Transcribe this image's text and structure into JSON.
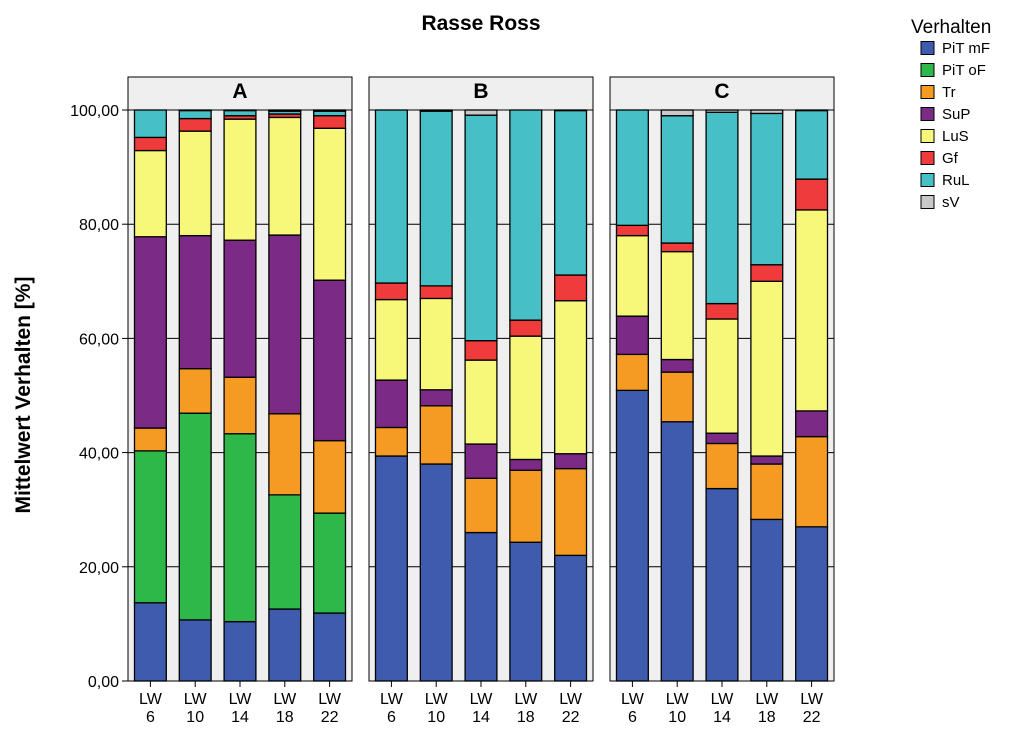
{
  "chart_data": {
    "type": "bar",
    "stacked": true,
    "title": "Rasse Ross",
    "ylabel": "Mittelwert Verhalten [%]",
    "xlabel": "",
    "ylim": [
      0,
      100
    ],
    "yticks": [
      "0,00",
      "20,00",
      "40,00",
      "60,00",
      "80,00",
      "100,00"
    ],
    "ytick_values": [
      0,
      20,
      40,
      60,
      80,
      100
    ],
    "grid": true,
    "legend": {
      "title": "Verhalten",
      "position": "top-right",
      "items": [
        {
          "name": "PiT mF",
          "color": "#3f5bad"
        },
        {
          "name": "PiT oF",
          "color": "#2fb84a"
        },
        {
          "name": "Tr",
          "color": "#f59a23"
        },
        {
          "name": "SuP",
          "color": "#7b2a86"
        },
        {
          "name": "LuS",
          "color": "#f7f77a"
        },
        {
          "name": "Gf",
          "color": "#ef3b3b"
        },
        {
          "name": "RuL",
          "color": "#46c0c6"
        },
        {
          "name": "sV",
          "color": "#c8c8c8"
        }
      ]
    },
    "categories": [
      [
        "LW",
        "6"
      ],
      [
        "LW",
        "10"
      ],
      [
        "LW",
        "14"
      ],
      [
        "LW",
        "18"
      ],
      [
        "LW",
        "22"
      ]
    ],
    "panels": [
      {
        "label": "A",
        "series": [
          {
            "name": "PiT mF",
            "values": [
              13.7,
              10.7,
              10.4,
              12.6,
              11.9
            ]
          },
          {
            "name": "PiT oF",
            "values": [
              26.6,
              36.2,
              32.9,
              20.0,
              17.5
            ]
          },
          {
            "name": "Tr",
            "values": [
              4.0,
              7.8,
              9.9,
              14.2,
              12.7
            ]
          },
          {
            "name": "SuP",
            "values": [
              33.5,
              23.3,
              24.0,
              31.3,
              28.1
            ]
          },
          {
            "name": "LuS",
            "values": [
              15.1,
              18.3,
              21.2,
              20.6,
              26.6
            ]
          },
          {
            "name": "Gf",
            "values": [
              2.3,
              2.2,
              0.6,
              0.6,
              2.2
            ]
          },
          {
            "name": "RuL",
            "values": [
              4.8,
              1.4,
              0.9,
              0.5,
              0.8
            ]
          },
          {
            "name": "sV",
            "values": [
              0.0,
              0.1,
              0.1,
              0.2,
              0.2
            ]
          }
        ]
      },
      {
        "label": "B",
        "series": [
          {
            "name": "PiT mF",
            "values": [
              39.4,
              38.0,
              26.0,
              24.3,
              22.0
            ]
          },
          {
            "name": "PiT oF",
            "values": [
              0,
              0,
              0,
              0,
              0
            ]
          },
          {
            "name": "Tr",
            "values": [
              5.0,
              10.2,
              9.5,
              12.6,
              15.2
            ]
          },
          {
            "name": "SuP",
            "values": [
              8.3,
              2.8,
              6.0,
              1.9,
              2.6
            ]
          },
          {
            "name": "LuS",
            "values": [
              14.1,
              16.0,
              14.7,
              21.6,
              26.8
            ]
          },
          {
            "name": "Gf",
            "values": [
              2.9,
              2.2,
              3.4,
              2.8,
              4.5
            ]
          },
          {
            "name": "RuL",
            "values": [
              30.3,
              30.6,
              39.5,
              36.8,
              28.8
            ]
          },
          {
            "name": "sV",
            "values": [
              0.0,
              0.2,
              0.9,
              0.0,
              0.1
            ]
          }
        ]
      },
      {
        "label": "C",
        "series": [
          {
            "name": "PiT mF",
            "values": [
              50.9,
              45.4,
              33.7,
              28.3,
              27.0
            ]
          },
          {
            "name": "PiT oF",
            "values": [
              0,
              0,
              0,
              0,
              0
            ]
          },
          {
            "name": "Tr",
            "values": [
              6.3,
              8.7,
              7.9,
              9.7,
              15.8
            ]
          },
          {
            "name": "SuP",
            "values": [
              6.7,
              2.2,
              1.8,
              1.4,
              4.5
            ]
          },
          {
            "name": "LuS",
            "values": [
              14.1,
              18.9,
              20.0,
              30.6,
              35.2
            ]
          },
          {
            "name": "Gf",
            "values": [
              1.8,
              1.5,
              2.7,
              2.9,
              5.4
            ]
          },
          {
            "name": "RuL",
            "values": [
              20.2,
              22.3,
              33.5,
              26.5,
              12.0
            ]
          },
          {
            "name": "sV",
            "values": [
              0.0,
              1.0,
              0.4,
              0.6,
              0.1
            ]
          }
        ]
      }
    ]
  }
}
